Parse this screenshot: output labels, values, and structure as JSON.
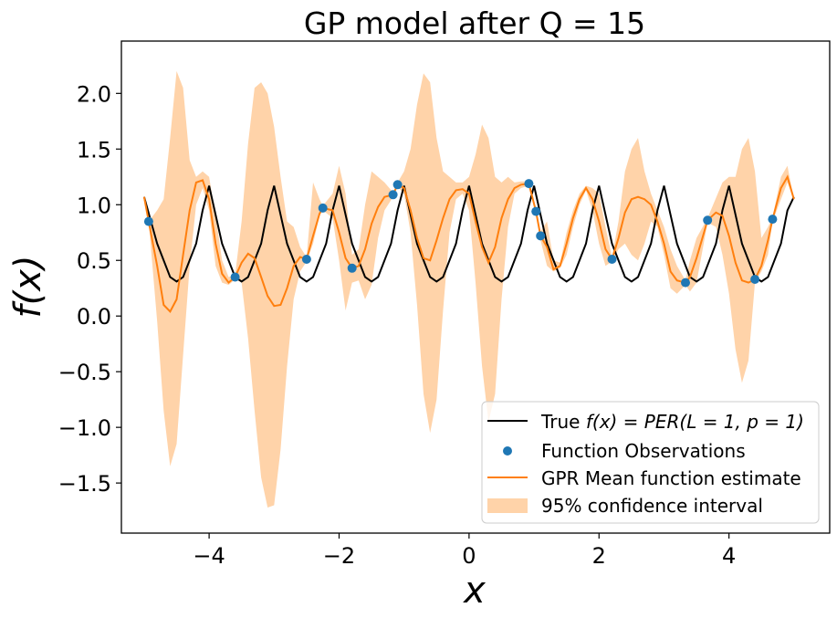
{
  "chart_data": {
    "type": "line",
    "title": "GP model after Q = 15",
    "xlabel": "x",
    "ylabel": "f(x)",
    "xlim": [
      -5.35,
      5.55
    ],
    "ylim": [
      -1.95,
      2.47
    ],
    "x_ticks": [
      -4,
      -2,
      0,
      2,
      4
    ],
    "x_tick_labels": [
      "−4",
      "−2",
      "0",
      "2",
      "4"
    ],
    "y_ticks": [
      2.0,
      1.5,
      1.0,
      0.5,
      0.0,
      -0.5,
      -1.0,
      -1.5
    ],
    "y_tick_labels": [
      "2.0",
      "1.5",
      "1.0",
      "0.5",
      "0.0",
      "−0.5",
      "−1.0",
      "−1.5"
    ],
    "grid": false,
    "legend_position": "bottom-right",
    "colors": {
      "true": "#000000",
      "observations": "#1f77b4",
      "mean": "#ff7f0e",
      "ci": "#ffd3a9"
    },
    "legend": {
      "true_prefix": "True ",
      "true_formula": "f(x) = PER(L = 1, p = 1)",
      "observations": "Function Observations",
      "mean": "GPR Mean function estimate",
      "ci": "95% confidence interval"
    },
    "true_function": {
      "name": "True f(x) = PER(L = 1, p = 1)",
      "x_start": -5.0,
      "x_end": 5.0,
      "period": 1.0,
      "length_scale": 1.0,
      "x": [
        -5.0,
        -4.8,
        -4.6,
        -4.5,
        -4.4,
        -4.2,
        -4.1,
        -4.0,
        -3.8,
        -3.6,
        -3.5,
        -3.4,
        -3.2,
        -3.1,
        -3.0,
        -2.8,
        -2.6,
        -2.5,
        -2.4,
        -2.2,
        -2.1,
        -2.0,
        -1.8,
        -1.6,
        -1.5,
        -1.4,
        -1.2,
        -1.1,
        -1.0,
        -0.8,
        -0.6,
        -0.5,
        -0.4,
        -0.2,
        -0.1,
        0.0,
        0.2,
        0.4,
        0.5,
        0.6,
        0.8,
        0.9,
        1.0,
        1.2,
        1.4,
        1.5,
        1.6,
        1.8,
        1.9,
        2.0,
        2.2,
        2.4,
        2.5,
        2.6,
        2.8,
        2.9,
        3.0,
        3.2,
        3.4,
        3.5,
        3.6,
        3.8,
        3.9,
        4.0,
        4.2,
        4.4,
        4.5,
        4.6,
        4.8,
        4.9,
        5.0
      ],
      "y": [
        1.07,
        0.65,
        0.35,
        0.31,
        0.35,
        0.65,
        0.95,
        1.17,
        0.65,
        0.35,
        0.31,
        0.35,
        0.65,
        0.95,
        1.17,
        0.65,
        0.35,
        0.31,
        0.35,
        0.65,
        0.95,
        1.17,
        0.65,
        0.35,
        0.31,
        0.35,
        0.65,
        0.95,
        1.17,
        0.65,
        0.35,
        0.31,
        0.35,
        0.65,
        0.95,
        1.17,
        0.65,
        0.35,
        0.31,
        0.35,
        0.65,
        0.95,
        1.17,
        0.65,
        0.35,
        0.31,
        0.35,
        0.65,
        0.95,
        1.17,
        0.65,
        0.35,
        0.31,
        0.35,
        0.65,
        0.95,
        1.17,
        0.65,
        0.35,
        0.31,
        0.35,
        0.65,
        0.95,
        1.17,
        0.65,
        0.35,
        0.31,
        0.35,
        0.65,
        0.95,
        1.07
      ]
    },
    "observations": {
      "name": "Function Observations",
      "x": [
        -4.93,
        -3.6,
        -2.5,
        -2.25,
        -1.8,
        -1.17,
        -1.1,
        0.92,
        1.03,
        1.1,
        2.2,
        3.33,
        3.67,
        4.4,
        4.67
      ],
      "y": [
        0.85,
        0.35,
        0.51,
        0.97,
        0.43,
        1.09,
        1.18,
        1.19,
        0.94,
        0.72,
        0.51,
        0.3,
        0.86,
        0.33,
        0.87
      ]
    },
    "mean": {
      "name": "GPR Mean function estimate",
      "x": [
        -5.0,
        -4.93,
        -4.8,
        -4.7,
        -4.6,
        -4.5,
        -4.4,
        -4.3,
        -4.2,
        -4.1,
        -4.0,
        -3.9,
        -3.8,
        -3.7,
        -3.6,
        -3.5,
        -3.4,
        -3.3,
        -3.2,
        -3.1,
        -3.0,
        -2.9,
        -2.8,
        -2.7,
        -2.6,
        -2.5,
        -2.4,
        -2.3,
        -2.25,
        -2.1,
        -2.0,
        -1.9,
        -1.8,
        -1.7,
        -1.6,
        -1.5,
        -1.4,
        -1.3,
        -1.17,
        -1.1,
        -1.0,
        -0.9,
        -0.8,
        -0.7,
        -0.6,
        -0.5,
        -0.4,
        -0.3,
        -0.2,
        -0.1,
        0.0,
        0.1,
        0.2,
        0.3,
        0.4,
        0.5,
        0.6,
        0.7,
        0.8,
        0.92,
        1.03,
        1.1,
        1.2,
        1.3,
        1.4,
        1.5,
        1.6,
        1.7,
        1.8,
        1.9,
        2.0,
        2.1,
        2.2,
        2.3,
        2.4,
        2.5,
        2.6,
        2.7,
        2.8,
        2.9,
        3.0,
        3.1,
        3.2,
        3.33,
        3.4,
        3.5,
        3.67,
        3.8,
        3.9,
        4.0,
        4.1,
        4.2,
        4.3,
        4.4,
        4.5,
        4.6,
        4.67,
        4.8,
        4.9,
        5.0
      ],
      "y": [
        1.07,
        0.85,
        0.45,
        0.1,
        0.04,
        0.15,
        0.55,
        0.95,
        1.2,
        1.22,
        1.05,
        0.65,
        0.38,
        0.3,
        0.35,
        0.48,
        0.56,
        0.52,
        0.35,
        0.18,
        0.09,
        0.1,
        0.25,
        0.45,
        0.53,
        0.51,
        0.72,
        0.92,
        0.97,
        0.95,
        0.75,
        0.52,
        0.43,
        0.45,
        0.6,
        0.83,
        0.98,
        1.07,
        1.09,
        1.18,
        1.15,
        0.95,
        0.7,
        0.52,
        0.5,
        0.68,
        0.88,
        1.05,
        1.13,
        1.14,
        1.1,
        0.85,
        0.62,
        0.48,
        0.62,
        0.88,
        1.05,
        1.15,
        1.18,
        1.19,
        0.94,
        0.72,
        0.62,
        0.42,
        0.45,
        0.65,
        0.88,
        1.05,
        1.15,
        1.05,
        0.85,
        0.6,
        0.51,
        0.7,
        0.93,
        1.05,
        1.07,
        1.05,
        1.0,
        0.85,
        0.65,
        0.4,
        0.32,
        0.3,
        0.35,
        0.52,
        0.86,
        0.93,
        0.9,
        0.72,
        0.48,
        0.32,
        0.3,
        0.33,
        0.45,
        0.68,
        0.87,
        1.15,
        1.25,
        1.05
      ]
    },
    "confidence_interval": {
      "name": "95% confidence interval",
      "x": [
        -5.0,
        -4.93,
        -4.8,
        -4.7,
        -4.6,
        -4.5,
        -4.4,
        -4.3,
        -4.2,
        -4.1,
        -4.0,
        -3.9,
        -3.8,
        -3.7,
        -3.6,
        -3.5,
        -3.4,
        -3.3,
        -3.2,
        -3.1,
        -3.0,
        -2.9,
        -2.8,
        -2.7,
        -2.6,
        -2.5,
        -2.4,
        -2.3,
        -2.25,
        -2.1,
        -2.0,
        -1.9,
        -1.8,
        -1.7,
        -1.6,
        -1.5,
        -1.4,
        -1.3,
        -1.17,
        -1.1,
        -1.0,
        -0.9,
        -0.8,
        -0.7,
        -0.6,
        -0.5,
        -0.4,
        -0.3,
        -0.2,
        -0.1,
        0.0,
        0.1,
        0.2,
        0.3,
        0.4,
        0.5,
        0.6,
        0.7,
        0.8,
        0.92,
        1.03,
        1.1,
        1.2,
        1.3,
        1.4,
        1.5,
        1.6,
        1.7,
        1.8,
        1.9,
        2.0,
        2.1,
        2.2,
        2.3,
        2.4,
        2.5,
        2.6,
        2.7,
        2.8,
        2.9,
        3.0,
        3.1,
        3.2,
        3.33,
        3.4,
        3.5,
        3.67,
        3.8,
        3.9,
        4.0,
        4.1,
        4.2,
        4.3,
        4.4,
        4.5,
        4.6,
        4.67,
        4.8,
        4.9,
        5.0
      ],
      "lower": [
        1.07,
        0.85,
        -0.05,
        -0.85,
        -1.35,
        -1.15,
        -0.35,
        0.45,
        1.0,
        1.15,
        0.95,
        0.45,
        0.3,
        0.28,
        0.33,
        0.3,
        -0.2,
        -0.85,
        -1.45,
        -1.72,
        -1.7,
        -1.2,
        -0.45,
        0.15,
        0.4,
        0.49,
        0.65,
        0.9,
        0.95,
        0.88,
        0.5,
        0.05,
        0.3,
        0.32,
        0.15,
        0.28,
        0.7,
        0.95,
        1.07,
        1.16,
        1.1,
        0.75,
        0.1,
        -0.7,
        -1.05,
        -0.75,
        0.05,
        0.75,
        1.05,
        1.1,
        0.95,
        0.3,
        -0.45,
        -0.95,
        -0.7,
        0.15,
        0.8,
        1.1,
        1.15,
        1.17,
        0.92,
        0.68,
        0.45,
        0.4,
        0.43,
        0.55,
        0.8,
        1.0,
        1.13,
        0.95,
        0.65,
        0.45,
        0.49,
        0.6,
        0.65,
        0.55,
        0.5,
        0.65,
        0.85,
        0.8,
        0.55,
        0.25,
        0.2,
        0.28,
        0.22,
        0.3,
        0.84,
        0.8,
        0.55,
        0.2,
        -0.3,
        -0.6,
        -0.4,
        0.3,
        0.4,
        0.55,
        0.85,
        1.05,
        1.2,
        1.05
      ],
      "upper": [
        1.07,
        0.85,
        0.95,
        1.05,
        1.6,
        2.2,
        2.05,
        1.4,
        1.25,
        1.3,
        1.25,
        0.9,
        0.5,
        0.35,
        0.37,
        0.85,
        1.55,
        2.05,
        2.1,
        2.0,
        1.7,
        1.25,
        0.85,
        0.8,
        0.62,
        0.53,
        1.2,
        1.05,
        0.99,
        1.1,
        1.35,
        1.1,
        0.55,
        0.6,
        1.0,
        1.3,
        1.25,
        1.2,
        1.11,
        1.2,
        1.3,
        1.5,
        1.9,
        2.18,
        2.1,
        1.6,
        1.3,
        1.25,
        1.2,
        1.2,
        1.25,
        1.45,
        1.72,
        1.6,
        1.25,
        1.2,
        1.25,
        1.2,
        1.21,
        1.21,
        0.96,
        0.76,
        0.85,
        0.5,
        0.48,
        0.75,
        0.95,
        1.1,
        1.17,
        1.15,
        1.1,
        0.8,
        0.53,
        0.85,
        1.3,
        1.5,
        1.6,
        1.3,
        1.1,
        0.95,
        0.8,
        0.6,
        0.45,
        0.32,
        0.5,
        0.7,
        0.88,
        1.06,
        1.2,
        1.25,
        1.25,
        1.5,
        1.6,
        1.3,
        0.7,
        0.8,
        0.89,
        1.25,
        1.35,
        1.05
      ]
    }
  }
}
